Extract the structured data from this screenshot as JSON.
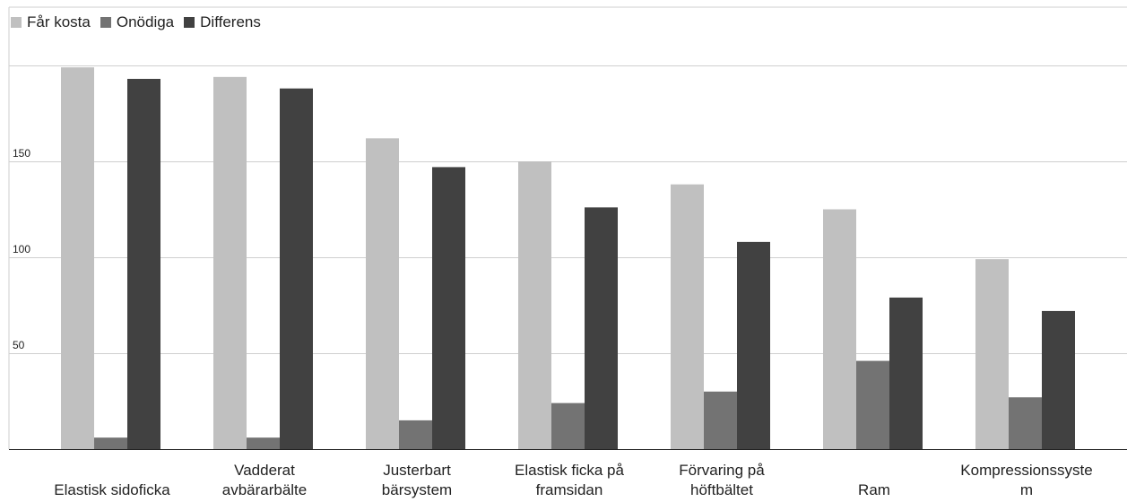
{
  "chart_data": {
    "type": "bar",
    "title": "",
    "xlabel": "",
    "ylabel": "",
    "categories": [
      [
        "Elastisk sidoficka"
      ],
      [
        "Vadderat",
        "avbärarbälte"
      ],
      [
        "Justerbart",
        "bärsystem"
      ],
      [
        "Elastisk ficka på",
        "framsidan"
      ],
      [
        "Förvaring på",
        "höftbältet"
      ],
      [
        "Ram"
      ],
      [
        "Kompressionssyste",
        "m"
      ]
    ],
    "series": [
      {
        "name": "Får kosta",
        "color": "#c0c0c0",
        "values": [
          199,
          194,
          162,
          150,
          138,
          125,
          99
        ]
      },
      {
        "name": "Onödiga",
        "color": "#737373",
        "values": [
          6,
          6,
          15,
          24,
          30,
          46,
          27
        ]
      },
      {
        "name": "Differens",
        "color": "#414141",
        "values": [
          193,
          188,
          147,
          126,
          108,
          79,
          72
        ]
      }
    ],
    "yticks": [
      "50",
      "100",
      "150"
    ],
    "ylim": [
      0,
      200
    ],
    "grid": true,
    "legend_position": "top-left"
  }
}
